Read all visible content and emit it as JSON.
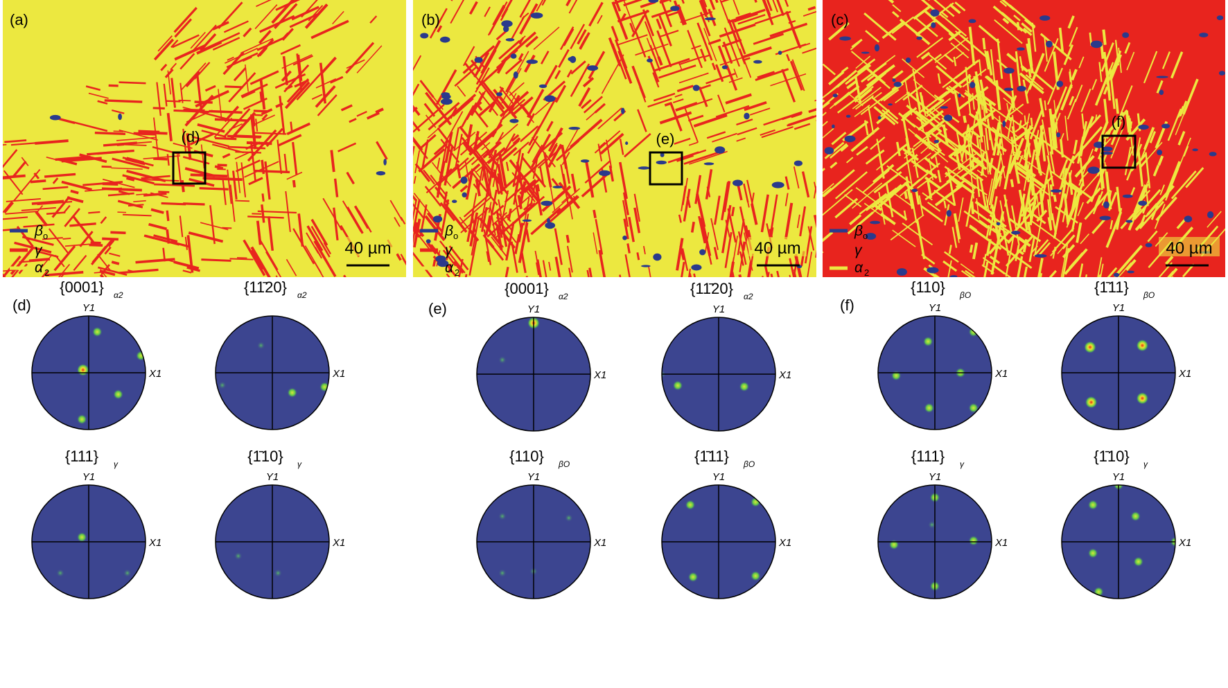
{
  "maps": [
    {
      "label": "(a)",
      "box_label": "(d)",
      "legend": [
        {
          "sym": "β",
          "sub": "o",
          "color": "#2a3a8c"
        },
        {
          "sym": "γ",
          "sub": "",
          "color": "#e8241e"
        },
        {
          "sym": "α",
          "sub": "2",
          "color": "#ece840"
        }
      ],
      "scale": "40 µm",
      "base": "#ece840",
      "stripe": "#e8241e",
      "speck": "#2a3a8c"
    },
    {
      "label": "(b)",
      "box_label": "(e)",
      "legend": [
        {
          "sym": "β",
          "sub": "o",
          "color": "#2a3a8c"
        },
        {
          "sym": "γ",
          "sub": "",
          "color": "#e8241e"
        },
        {
          "sym": "α",
          "sub": "2",
          "color": "#ece840"
        }
      ],
      "scale": "40 µm",
      "base": "#ece840",
      "stripe": "#e8241e",
      "speck": "#2a3a8c"
    },
    {
      "label": "(c)",
      "box_label": "(f)",
      "legend": [
        {
          "sym": "β",
          "sub": "o",
          "color": "#2a3a8c"
        },
        {
          "sym": "γ",
          "sub": "",
          "color": "#e8241e"
        },
        {
          "sym": "α",
          "sub": "2",
          "color": "#ece840"
        }
      ],
      "scale": "40 µm",
      "base": "#e8241e",
      "stripe": "#ece840",
      "speck": "#2a3a8c"
    }
  ],
  "pole_groups": [
    {
      "label": "(d)",
      "figures": [
        {
          "title": "{0001}",
          "sub": "α2",
          "y": "Y1",
          "x": "X1"
        },
        {
          "title": "{11̄20}",
          "sub": "α2",
          "y": "",
          "x": "X1"
        },
        {
          "title": "{111}",
          "sub": "γ",
          "y": "Y1",
          "x": "X1"
        },
        {
          "title": "{1̄10}",
          "sub": "γ",
          "y": "Y1",
          "x": "X1"
        }
      ]
    },
    {
      "label": "(e)",
      "figures": [
        {
          "title": "{0001}",
          "sub": "α2",
          "y": "Y1",
          "x": "X1"
        },
        {
          "title": "{11̄20}",
          "sub": "α2",
          "y": "Y1",
          "x": "X1"
        },
        {
          "title": "{110}",
          "sub": "βO",
          "y": "Y1",
          "x": "X1"
        },
        {
          "title": "{1̄11}",
          "sub": "βO",
          "y": "Y1",
          "x": "X1"
        }
      ]
    },
    {
      "label": "(f)",
      "figures": [
        {
          "title": "{110}",
          "sub": "βO",
          "y": "Y1",
          "x": "X1"
        },
        {
          "title": "{1̄11}",
          "sub": "βO",
          "y": "Y1",
          "x": "X1"
        },
        {
          "title": "{111}",
          "sub": "γ",
          "y": "Y1",
          "x": "X1"
        },
        {
          "title": "{1̄10}",
          "sub": "γ",
          "y": "Y1",
          "x": "X1"
        }
      ]
    }
  ],
  "colors": {
    "disk": "#3c4590",
    "pole_outer": "#5fc84a",
    "pole_mid": "#c8e040",
    "pole_core": "#e82818"
  }
}
